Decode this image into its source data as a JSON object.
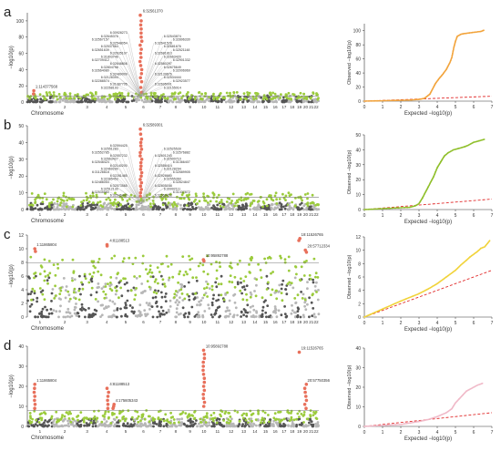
{
  "figure": {
    "panel_labels": [
      "a",
      "b",
      "c",
      "d"
    ]
  },
  "colors": {
    "dark": "#555555",
    "light": "#b7b7b7",
    "green": "#9bcb3c",
    "red": "#e8705b",
    "threshold": "#777777",
    "ref": "#e12a2a",
    "qq_a": "#f2a33a",
    "qq_b": "#8fbf2a",
    "qq_c": "#f1d33a",
    "qq_d": "#f0b9c8"
  },
  "chart_data": [
    {
      "type": "scatter",
      "panel": "a",
      "xlabel": "Chromosome",
      "ylabel": "−log10(p)",
      "chromosomes": [
        "1",
        "2",
        "3",
        "4",
        "5",
        "6",
        "7",
        "8",
        "9",
        "10",
        "11",
        "12",
        "13",
        "14",
        "15",
        "16",
        "17",
        "18",
        "19",
        "20",
        "21",
        "22"
      ],
      "ylim": [
        0,
        110
      ],
      "yticks": [
        0,
        20,
        40,
        60,
        80,
        100
      ],
      "threshold": 7.3,
      "background_max": 8,
      "green_max": 12,
      "peaks": [
        {
          "chr": 1,
          "pos": 0.25,
          "values": [
            10,
            14
          ],
          "label": "1:114377568"
        },
        {
          "chr": 6,
          "pos": 0.35,
          "values": [
            12,
            18,
            25,
            30,
            35,
            40,
            45,
            50,
            55,
            60,
            65,
            70,
            75,
            80,
            85,
            90,
            95,
            100,
            107
          ],
          "label": "6:32561370"
        }
      ],
      "annotations": [
        "6:32561370",
        "6:30928273",
        "6:32543874",
        "6:32645376",
        "6:32896330",
        "6:32567157",
        "6:32641578",
        "6:32548054",
        "6:32681676",
        "6:32537964",
        "6:32521148",
        "6:32651639",
        "6:32681813",
        "6:32635107",
        "6:32663420",
        "6:31803746",
        "6:32901332",
        "6:32709412",
        "6:32580297",
        "6:32648808",
        "6:32675649",
        "6:32804798",
        "6:32006969",
        "6:32664080",
        "6:32139676",
        "6:32489009",
        "6:32534444",
        "6:32128394",
        "6:32923577",
        "6:32288574",
        "6:32695001",
        "6:31387705",
        "6:32155014",
        "6:32268193",
        "1:114377568"
      ],
      "qq": {
        "xlabel": "Expected −log10(p)",
        "ylabel": "Observed −log10(p)",
        "xlim": [
          0,
          7
        ],
        "ylim": [
          0,
          110
        ],
        "xticks": [
          0,
          1,
          2,
          3,
          4,
          5,
          6,
          7
        ],
        "yticks": [
          0,
          20,
          40,
          60,
          80,
          100
        ],
        "curve": [
          [
            0,
            0
          ],
          [
            2.5,
            1.5
          ],
          [
            3,
            2.5
          ],
          [
            3.3,
            4
          ],
          [
            3.6,
            10
          ],
          [
            3.9,
            25
          ],
          [
            4.1,
            32
          ],
          [
            4.3,
            38
          ],
          [
            4.5,
            45
          ],
          [
            4.7,
            55
          ],
          [
            4.8,
            62
          ],
          [
            4.9,
            75
          ],
          [
            5.0,
            85
          ],
          [
            5.1,
            92
          ],
          [
            5.3,
            95
          ],
          [
            5.5,
            96
          ],
          [
            5.8,
            97
          ],
          [
            6.1,
            98
          ],
          [
            6.4,
            99
          ],
          [
            6.6,
            101
          ]
        ]
      }
    },
    {
      "type": "scatter",
      "panel": "b",
      "xlabel": "Chromosome",
      "ylabel": "−log10(p)",
      "chromosomes": [
        "1",
        "2",
        "3",
        "4",
        "5",
        "6",
        "7",
        "8",
        "9",
        "10",
        "11",
        "12",
        "13",
        "14",
        "15",
        "16",
        "17",
        "18",
        "19",
        "20",
        "21",
        "22"
      ],
      "ylim": [
        0,
        50
      ],
      "yticks": [
        0,
        10,
        20,
        30,
        40,
        50
      ],
      "threshold": 7.3,
      "background_max": 4,
      "green_max": 10,
      "peaks": [
        {
          "chr": 6,
          "pos": 0.35,
          "values": [
            8,
            10,
            12,
            14,
            16,
            18,
            20,
            22,
            24,
            26,
            28,
            30,
            32,
            34,
            36,
            38,
            40,
            42,
            45,
            48
          ],
          "label": "6:32589301"
        }
      ],
      "annotations": [
        "6:32589301",
        "6:32594425",
        "6:32525539",
        "6:32551283",
        "6:32576882",
        "6:32552785",
        "6:32601243",
        "6:32557232",
        "6:32500710",
        "6:32663427",
        "6:31366407",
        "6:32548424",
        "6:32558414",
        "6:32140200",
        "6:32128294",
        "6:32469290",
        "6:32589905",
        "6:31126618",
        "6:32928660",
        "6:32281485",
        "6:32555360",
        "6:32385453",
        "6:32824847",
        "6:32486054",
        "6:32805168",
        "6:32573565",
        "6:30992111",
        "6:32512130",
        "6:31437872",
        "6:32535560",
        "6:32559453",
        "6:32546440"
      ],
      "qq": {
        "xlabel": "Expected −log10(p)",
        "ylabel": "Observed −log10(p)",
        "xlim": [
          0,
          7
        ],
        "ylim": [
          0,
          50
        ],
        "xticks": [
          0,
          1,
          2,
          3,
          4,
          5,
          6,
          7
        ],
        "yticks": [
          0,
          10,
          20,
          30,
          40,
          50
        ],
        "curve": [
          [
            0,
            0
          ],
          [
            2.5,
            1.5
          ],
          [
            2.8,
            2.5
          ],
          [
            3.0,
            4
          ],
          [
            3.2,
            8
          ],
          [
            3.5,
            15
          ],
          [
            3.8,
            22
          ],
          [
            4.0,
            28
          ],
          [
            4.2,
            32
          ],
          [
            4.4,
            36
          ],
          [
            4.6,
            38
          ],
          [
            4.9,
            40
          ],
          [
            5.2,
            41
          ],
          [
            5.5,
            42
          ],
          [
            5.7,
            43
          ],
          [
            6.0,
            45
          ],
          [
            6.3,
            46
          ],
          [
            6.6,
            47
          ]
        ]
      }
    },
    {
      "type": "scatter",
      "panel": "c",
      "xlabel": "Chromosome",
      "ylabel": "−log10(p)",
      "chromosomes": [
        "1",
        "2",
        "3",
        "4",
        "5",
        "6",
        "7",
        "8",
        "9",
        "10",
        "11",
        "12",
        "13",
        "14",
        "15",
        "16",
        "17",
        "18",
        "19",
        "20",
        "21",
        "22"
      ],
      "ylim": [
        0,
        12
      ],
      "yticks": [
        0,
        2,
        4,
        6,
        8,
        10,
        12
      ],
      "threshold": 7.9,
      "background_max": 6,
      "green_max": 9,
      "peaks": [
        {
          "chr": 1,
          "pos": 0.3,
          "values": [
            9.6,
            10
          ],
          "label": "1:11865804"
        },
        {
          "chr": 4,
          "pos": 0.55,
          "values": [
            10.4,
            10.6
          ],
          "label": "4:81188513"
        },
        {
          "chr": 10,
          "pos": 0.5,
          "values": [
            8.2,
            8.4
          ],
          "label": "10:95892788"
        },
        {
          "chr": 19,
          "pos": 0.5,
          "values": [
            11.2,
            11.5
          ],
          "label": "19:11526765"
        },
        {
          "chr": 20,
          "pos": 0.5,
          "values": [
            9.5,
            9.8
          ],
          "label": "20:57712334"
        }
      ],
      "annotations": [
        "1:11865804",
        "4:81188513",
        "10:95892788",
        "19:11526765",
        "20:57712334"
      ],
      "qq": {
        "xlabel": "Expected −log10(p)",
        "ylabel": "Observed −log10(p)",
        "xlim": [
          0,
          7
        ],
        "ylim": [
          0,
          12
        ],
        "xticks": [
          0,
          1,
          2,
          3,
          4,
          5,
          6,
          7
        ],
        "yticks": [
          0,
          2,
          4,
          6,
          8,
          10,
          12
        ],
        "curve": [
          [
            0,
            0
          ],
          [
            1,
            1.2
          ],
          [
            2,
            2.4
          ],
          [
            3,
            3.5
          ],
          [
            3.5,
            4.2
          ],
          [
            4,
            5
          ],
          [
            4.5,
            6
          ],
          [
            5,
            7
          ],
          [
            5.3,
            7.8
          ],
          [
            5.6,
            8.5
          ],
          [
            5.8,
            9
          ],
          [
            6,
            9.4
          ],
          [
            6.2,
            9.8
          ],
          [
            6.4,
            10.3
          ],
          [
            6.6,
            10.5
          ],
          [
            6.9,
            11.5
          ]
        ]
      }
    },
    {
      "type": "scatter",
      "panel": "d",
      "xlabel": "Chromosome",
      "ylabel": "−log10(p)",
      "chromosomes": [
        "1",
        "2",
        "3",
        "4",
        "5",
        "6",
        "7",
        "8",
        "9",
        "10",
        "11",
        "12",
        "13",
        "14",
        "15",
        "16",
        "17",
        "18",
        "19",
        "20",
        "21",
        "22"
      ],
      "ylim": [
        0,
        40
      ],
      "yticks": [
        0,
        10,
        20,
        30,
        40
      ],
      "threshold": 7.9,
      "background_max": 4,
      "green_max": 8,
      "peaks": [
        {
          "chr": 1,
          "pos": 0.3,
          "values": [
            9,
            11,
            13,
            15,
            17,
            19,
            21
          ],
          "label": "1:11865804"
        },
        {
          "chr": 4,
          "pos": 0.55,
          "values": [
            9,
            11,
            13,
            15,
            17,
            19
          ],
          "label": "4:81188513"
        },
        {
          "chr": 4,
          "pos": 0.85,
          "values": [
            9,
            10,
            11
          ],
          "label": "4:175605343"
        },
        {
          "chr": 10,
          "pos": 0.5,
          "values": [
            10,
            12,
            14,
            16,
            18,
            20,
            22,
            24,
            26,
            28,
            30,
            32,
            34,
            36,
            38
          ],
          "label": "10:95892788"
        },
        {
          "chr": 19,
          "pos": 0.5,
          "values": [
            37
          ],
          "label": "19:11526765"
        },
        {
          "chr": 20,
          "pos": 0.5,
          "values": [
            9,
            11,
            13,
            15,
            17,
            19,
            21
          ],
          "label": "20:57750356"
        }
      ],
      "annotations": [
        "1:11865804",
        "4:81188513",
        "4:175605343",
        "10:95892788",
        "19:11526765",
        "20:57750356"
      ],
      "qq": {
        "xlabel": "Expected −log10(p)",
        "ylabel": "Observed −log10(p)",
        "xlim": [
          0,
          7
        ],
        "ylim": [
          0,
          40
        ],
        "xticks": [
          0,
          1,
          2,
          3,
          4,
          5,
          6,
          7
        ],
        "yticks": [
          0,
          10,
          20,
          30,
          40
        ],
        "curve": [
          [
            0,
            0
          ],
          [
            2,
            1
          ],
          [
            3,
            2.5
          ],
          [
            3.5,
            3.5
          ],
          [
            4,
            5
          ],
          [
            4.5,
            7
          ],
          [
            4.8,
            9
          ],
          [
            5.0,
            12
          ],
          [
            5.2,
            14
          ],
          [
            5.4,
            16
          ],
          [
            5.6,
            18
          ],
          [
            5.8,
            19
          ],
          [
            6.0,
            20
          ],
          [
            6.2,
            21
          ],
          [
            6.5,
            22
          ]
        ]
      }
    }
  ]
}
